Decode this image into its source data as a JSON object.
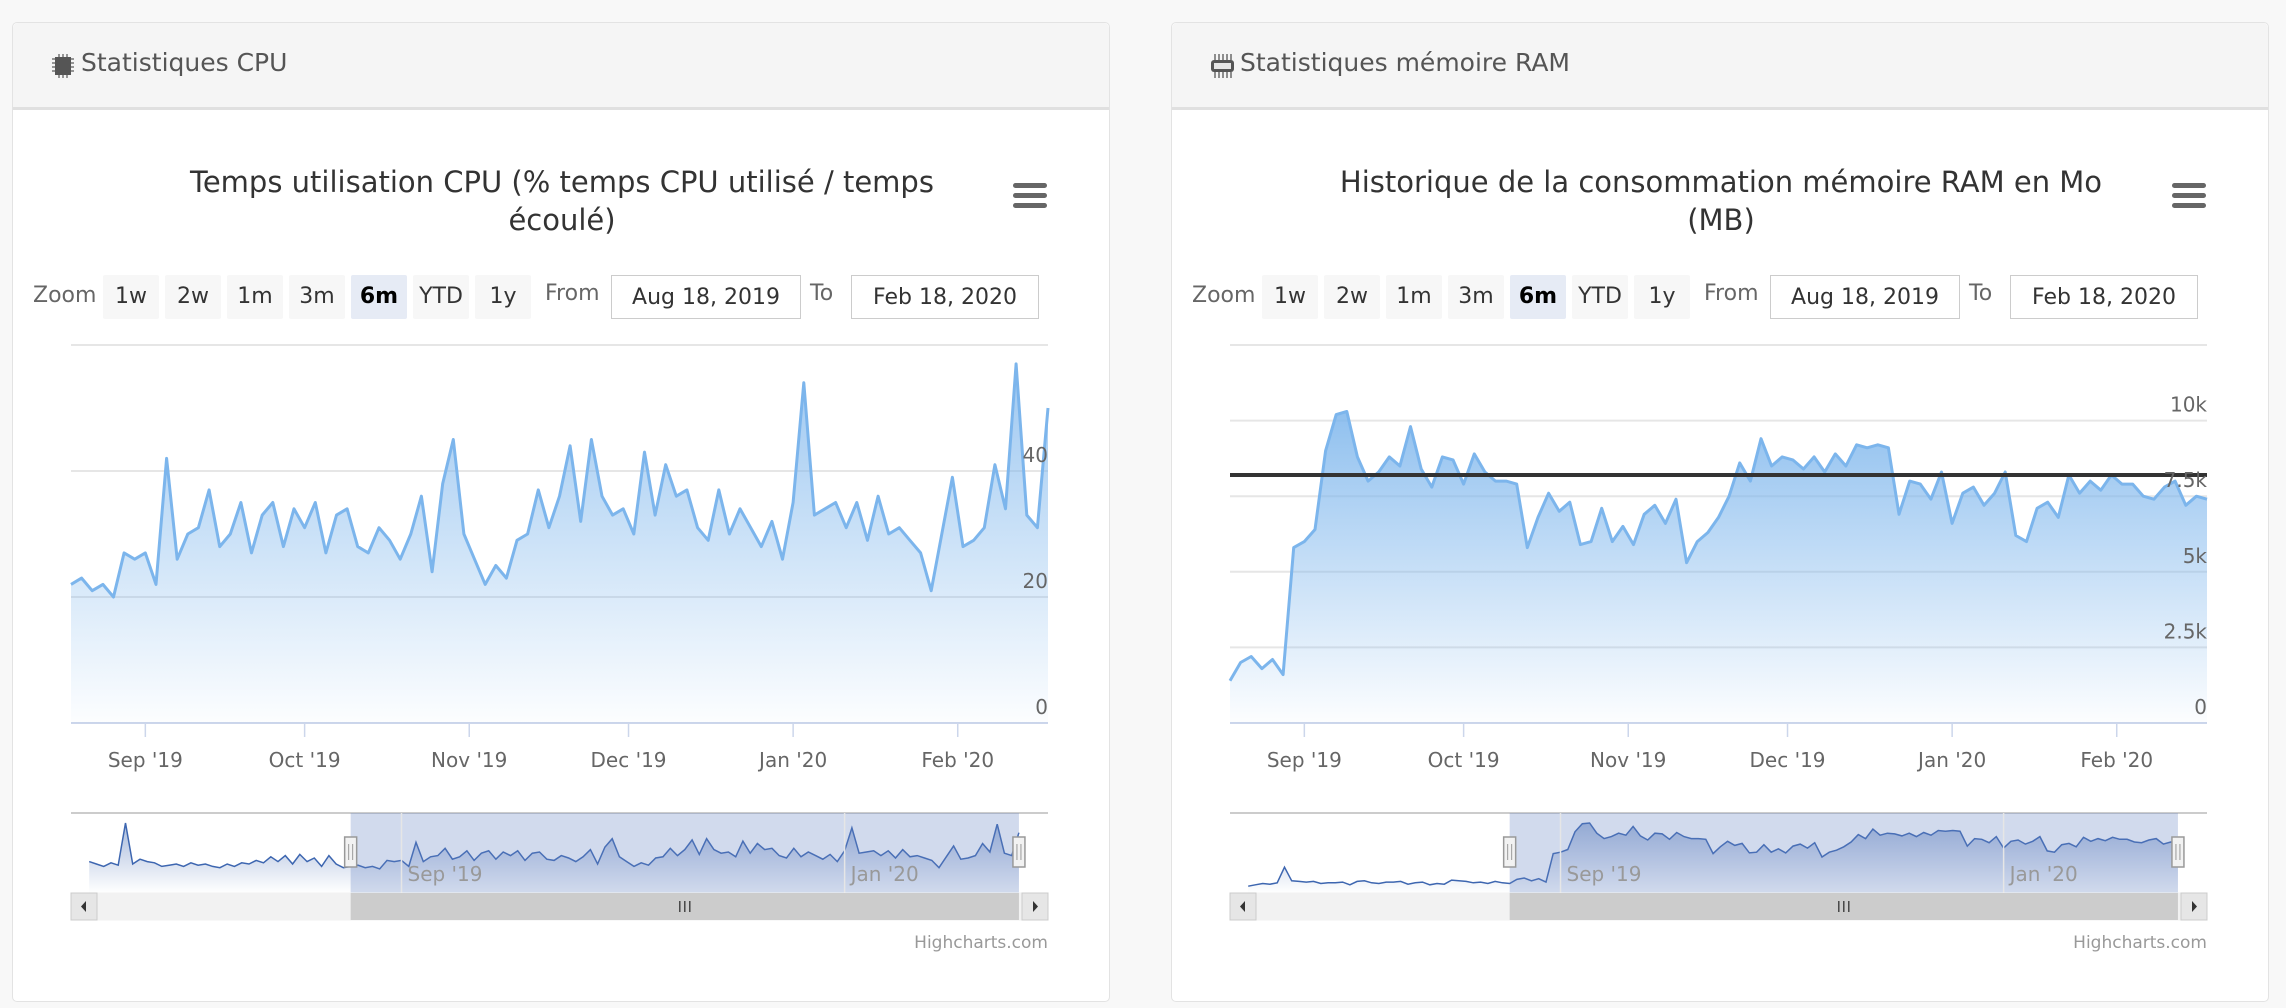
{
  "panels": [
    {
      "header": "Statistiques CPU",
      "icon": "cpu-chip-icon",
      "zoom": {
        "label": "Zoom",
        "buttons": [
          "1w",
          "2w",
          "1m",
          "3m",
          "6m",
          "YTD",
          "1y"
        ],
        "selected": "6m",
        "from_label": "From",
        "from_value": "Aug 18, 2019",
        "to_label": "To",
        "to_value": "Feb 18, 2020"
      },
      "credits": "Highcharts.com"
    },
    {
      "header": "Statistiques mémoire RAM",
      "icon": "ram-memory-icon",
      "zoom": {
        "label": "Zoom",
        "buttons": [
          "1w",
          "2w",
          "1m",
          "3m",
          "6m",
          "YTD",
          "1y"
        ],
        "selected": "6m",
        "from_label": "From",
        "from_value": "Aug 18, 2019",
        "to_label": "To",
        "to_value": "Feb 18, 2020"
      },
      "credits": "Highcharts.com"
    }
  ],
  "colors": {
    "series": "#7cb5ec",
    "navigator_line": "#3d66b0",
    "mask": "#6685c2",
    "plot_line": "#333333"
  },
  "chart_data": [
    {
      "type": "area",
      "title_lines": [
        "Temps utilisation CPU (% temps CPU utilisé / temps",
        "écoulé)"
      ],
      "x_start": "2019-08-18",
      "x_end": "2020-02-18",
      "step_days": 2,
      "values": [
        22,
        23,
        21,
        22,
        20,
        27,
        26,
        27,
        22,
        42,
        26,
        30,
        31,
        37,
        28,
        30,
        35,
        27,
        33,
        35,
        28,
        34,
        31,
        35,
        27,
        33,
        34,
        28,
        27,
        31,
        29,
        26,
        30,
        36,
        24,
        38,
        45,
        30,
        26,
        22,
        25,
        23,
        29,
        30,
        37,
        31,
        36,
        44,
        32,
        45,
        36,
        33,
        34,
        30,
        43,
        33,
        41,
        36,
        37,
        31,
        29,
        37,
        30,
        34,
        31,
        28,
        32,
        26,
        35,
        54,
        33,
        34,
        35,
        31,
        35,
        29,
        36,
        30,
        31,
        29,
        27,
        21,
        30,
        39,
        28,
        29,
        31,
        41,
        34,
        57,
        33,
        31,
        50
      ],
      "ylim": [
        0,
        60
      ],
      "y_ticks": [
        {
          "value": 0,
          "label": "0"
        },
        {
          "value": 20,
          "label": "20"
        },
        {
          "value": 40,
          "label": "40"
        }
      ],
      "x_ticks": [
        {
          "date": "2019-09-01",
          "label": "Sep '19"
        },
        {
          "date": "2019-10-01",
          "label": "Oct '19"
        },
        {
          "date": "2019-11-01",
          "label": "Nov '19"
        },
        {
          "date": "2019-12-01",
          "label": "Dec '19"
        },
        {
          "date": "2020-01-01",
          "label": "Jan '20"
        },
        {
          "date": "2020-02-01",
          "label": "Feb '20"
        }
      ],
      "navigator": {
        "history_start": "2019-06-07",
        "history_values": [
          26,
          24,
          22,
          25,
          23,
          58,
          24,
          28,
          26,
          25,
          22,
          23,
          24,
          22,
          25,
          23,
          24,
          22,
          21,
          24,
          22,
          25,
          24,
          27,
          25,
          30,
          26,
          31,
          24,
          32,
          26,
          29,
          22,
          31,
          24,
          21
        ],
        "range_start": "2019-06-02",
        "range_end": "2020-02-26",
        "ticks": [
          {
            "date": "2019-09-01",
            "label": "Sep '19"
          },
          {
            "date": "2020-01-01",
            "label": "Jan '20"
          }
        ]
      },
      "plot_line": null
    },
    {
      "type": "area",
      "title_lines": [
        "Historique de la consommation mémoire RAM en Mo",
        "(MB)"
      ],
      "x_start": "2019-08-18",
      "x_end": "2020-02-18",
      "step_days": 2,
      "values": [
        1400,
        2000,
        2200,
        1800,
        2100,
        1600,
        5800,
        6000,
        6400,
        9000,
        10200,
        10300,
        8800,
        8000,
        8300,
        8800,
        8500,
        9800,
        8400,
        7800,
        8800,
        8700,
        7900,
        8900,
        8300,
        8000,
        8000,
        7900,
        5800,
        6800,
        7600,
        7000,
        7300,
        5900,
        6000,
        7100,
        6000,
        6500,
        5900,
        6900,
        7200,
        6600,
        7400,
        5300,
        6000,
        6300,
        6800,
        7500,
        8600,
        8000,
        9400,
        8500,
        8800,
        8700,
        8400,
        8800,
        8300,
        8900,
        8500,
        9200,
        9100,
        9200,
        9100,
        6900,
        8000,
        7900,
        7400,
        8300,
        6600,
        7600,
        7800,
        7200,
        7600,
        8300,
        6200,
        6000,
        7100,
        7300,
        6800,
        8200,
        7600,
        8000,
        7700,
        8200,
        7900,
        7900,
        7500,
        7400,
        7800,
        8000,
        7200,
        7500,
        7400
      ],
      "ylim": [
        0,
        12500
      ],
      "y_ticks": [
        {
          "value": 0,
          "label": "0"
        },
        {
          "value": 2500,
          "label": "2.5k"
        },
        {
          "value": 5000,
          "label": "5k"
        },
        {
          "value": 7500,
          "label": "7.5k"
        },
        {
          "value": 10000,
          "label": "10k"
        }
      ],
      "x_ticks": [
        {
          "date": "2019-09-01",
          "label": "Sep '19"
        },
        {
          "date": "2019-10-01",
          "label": "Oct '19"
        },
        {
          "date": "2019-11-01",
          "label": "Nov '19"
        },
        {
          "date": "2019-12-01",
          "label": "Dec '19"
        },
        {
          "date": "2020-01-01",
          "label": "Jan '20"
        },
        {
          "date": "2020-02-01",
          "label": "Feb '20"
        }
      ],
      "navigator": {
        "history_start": "2019-06-07",
        "history_values": [
          1000,
          1200,
          1400,
          1300,
          1500,
          3800,
          1800,
          1700,
          1600,
          1700,
          1400,
          1500,
          1500,
          1600,
          1200,
          1700,
          1800,
          1500,
          1400,
          1600,
          1600,
          1700,
          1300,
          1500,
          1600,
          1200,
          1400,
          1300,
          1900,
          1800,
          1700,
          1500,
          1600,
          1400,
          1700,
          1500
        ],
        "range_start": "2019-06-02",
        "range_end": "2020-02-26",
        "ticks": [
          {
            "date": "2019-09-01",
            "label": "Sep '19"
          },
          {
            "date": "2020-01-01",
            "label": "Jan '20"
          }
        ]
      },
      "plot_line": {
        "value": 8200
      }
    }
  ]
}
